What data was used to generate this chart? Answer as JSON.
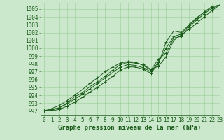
{
  "xlabel": "Graphe pression niveau de la mer (hPa)",
  "xlim": [
    -0.5,
    23
  ],
  "ylim": [
    991.5,
    1005.8
  ],
  "yticks": [
    992,
    993,
    994,
    995,
    996,
    997,
    998,
    999,
    1000,
    1001,
    1002,
    1003,
    1004,
    1005
  ],
  "xticks": [
    0,
    1,
    2,
    3,
    4,
    5,
    6,
    7,
    8,
    9,
    10,
    11,
    12,
    13,
    14,
    15,
    16,
    17,
    18,
    19,
    20,
    21,
    22,
    23
  ],
  "background_color": "#cce8cc",
  "grid_color": "#99cc99",
  "line_color": "#1a5c1a",
  "series": [
    {
      "x": [
        0,
        1,
        2,
        3,
        4,
        5,
        6,
        7,
        8,
        9,
        10,
        11,
        12,
        13,
        14,
        15,
        16,
        17,
        18,
        19,
        20,
        21,
        22,
        23
      ],
      "y": [
        992.0,
        992.2,
        992.4,
        993.0,
        993.8,
        994.3,
        995.1,
        995.7,
        996.4,
        997.2,
        997.9,
        998.2,
        998.1,
        997.9,
        997.3,
        997.7,
        998.9,
        1001.0,
        1001.7,
        1002.4,
        1003.2,
        1004.0,
        1004.8,
        1005.5
      ],
      "marked_x": [
        0,
        1,
        2,
        3,
        4,
        5,
        6,
        7,
        8,
        9,
        10,
        11,
        12,
        13,
        14,
        15,
        16,
        17,
        18,
        19,
        20,
        21,
        22,
        23
      ]
    },
    {
      "x": [
        0,
        1,
        2,
        3,
        4,
        5,
        6,
        7,
        8,
        9,
        10,
        11,
        12,
        13,
        14,
        15,
        16,
        17,
        18,
        19,
        20,
        21,
        22,
        23
      ],
      "y": [
        992.0,
        992.3,
        992.7,
        993.3,
        994.0,
        994.7,
        995.5,
        996.2,
        997.0,
        997.6,
        998.1,
        998.3,
        998.2,
        997.8,
        997.2,
        998.6,
        999.4,
        1001.3,
        1001.5,
        1002.7,
        1003.6,
        1004.4,
        1005.1,
        1005.5
      ],
      "marked_x": [
        0,
        1,
        2,
        3,
        4,
        5,
        6,
        7,
        8,
        9,
        10,
        11,
        12,
        13,
        14,
        15,
        16,
        17,
        18,
        19,
        20,
        21,
        22,
        23
      ]
    },
    {
      "x": [
        0,
        1,
        2,
        3,
        4,
        5,
        6,
        7,
        8,
        9,
        10,
        11,
        12,
        13,
        14,
        15,
        16,
        17,
        18,
        19,
        20,
        21,
        22,
        23
      ],
      "y": [
        992.0,
        992.1,
        992.4,
        992.9,
        993.5,
        994.1,
        994.8,
        995.5,
        996.2,
        996.9,
        997.6,
        997.9,
        997.8,
        997.5,
        997.0,
        998.2,
        1000.0,
        1001.5,
        1001.8,
        1002.9,
        1003.8,
        1004.6,
        1005.3,
        1005.5
      ],
      "marked_x": [
        0,
        1,
        2,
        3,
        4,
        5,
        6,
        7,
        8,
        9,
        10,
        11,
        12,
        13,
        14,
        15,
        16,
        17,
        18,
        19,
        20,
        21,
        22,
        23
      ]
    },
    {
      "x": [
        0,
        1,
        2,
        3,
        4,
        5,
        6,
        7,
        8,
        9,
        10,
        11,
        12,
        13,
        14,
        15,
        16,
        17,
        18,
        19,
        20,
        21,
        22,
        23
      ],
      "y": [
        992.0,
        992.0,
        992.2,
        992.6,
        993.1,
        993.7,
        994.4,
        995.0,
        995.7,
        996.4,
        997.2,
        997.6,
        997.6,
        997.3,
        996.8,
        998.0,
        1000.8,
        1002.2,
        1002.0,
        1003.0,
        1003.9,
        1004.6,
        1005.3,
        1005.5
      ],
      "marked_x": [
        0,
        1,
        2,
        3,
        4,
        5,
        6,
        7,
        8,
        9,
        10,
        11,
        12,
        13,
        14,
        15,
        16,
        17,
        18,
        19,
        20,
        21,
        22,
        23
      ]
    }
  ],
  "marker": "+",
  "marker_size": 3,
  "line_width": 0.7,
  "font_color": "#1a5c1a",
  "font_size_ticks": 5.5,
  "font_size_xlabel": 6.5
}
